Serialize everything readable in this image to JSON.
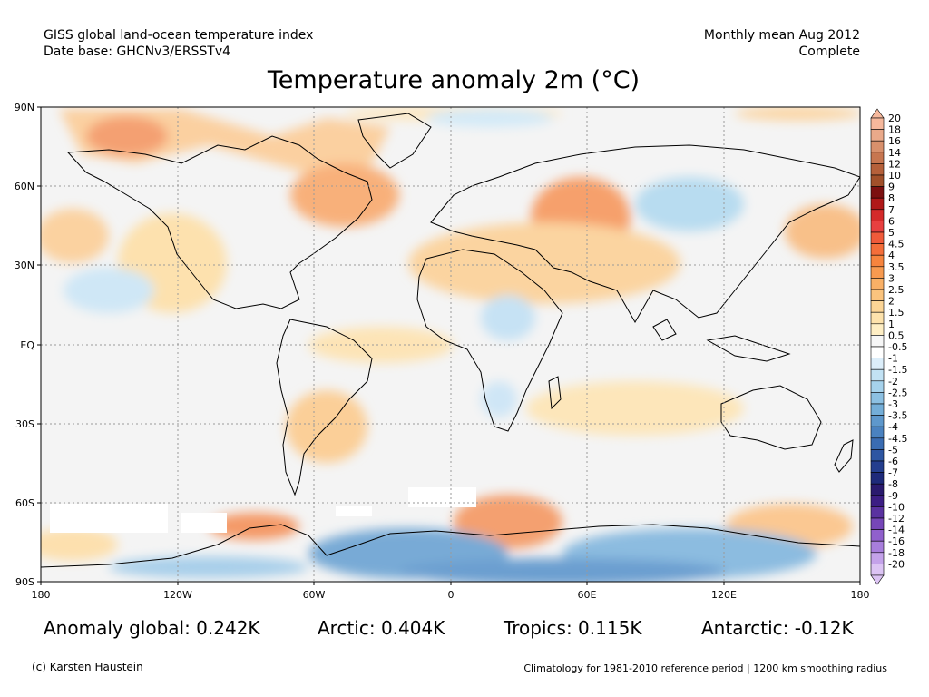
{
  "header": {
    "left_line1": "GISS global land-ocean temperature index",
    "left_line2": "Date base: GHCNv3/ERSSTv4",
    "right_line1": "Monthly mean Aug 2012",
    "right_line2": "Complete"
  },
  "title": "Temperature anomaly 2m (°C)",
  "axes": {
    "lat_labels": [
      "90N",
      "60N",
      "30N",
      "EQ",
      "30S",
      "60S",
      "90S"
    ],
    "lon_labels": [
      "180",
      "120W",
      "60W",
      "0",
      "60E",
      "120E",
      "180"
    ]
  },
  "stats": {
    "global": "Anomaly global: 0.242K",
    "arctic": "Arctic: 0.404K",
    "tropics": "Tropics: 0.115K",
    "antarctic": "Antarctic: -0.12K"
  },
  "footer": {
    "credit": "(c) Karsten Haustein",
    "note": "Climatology for 1981-2010 reference period | 1200 km smoothing radius"
  },
  "legend": {
    "labels": [
      "20",
      "18",
      "16",
      "14",
      "12",
      "10",
      "9",
      "8",
      "7",
      "6",
      "5",
      "4.5",
      "4",
      "3.5",
      "3",
      "2.5",
      "2",
      "1.5",
      "1",
      "0.5",
      "-0.5",
      "-1",
      "-1.5",
      "-2",
      "-2.5",
      "-3",
      "-3.5",
      "-4",
      "-4.5",
      "-5",
      "-6",
      "-7",
      "-8",
      "-9",
      "-10",
      "-12",
      "-14",
      "-16",
      "-18",
      "-20"
    ],
    "colors": [
      "#f6b89c",
      "#e9a98a",
      "#d8906c",
      "#c77650",
      "#b5603a",
      "#a1502a",
      "#7c1010",
      "#b01818",
      "#d42a2a",
      "#e84040",
      "#f05a3a",
      "#f46e3a",
      "#f6843e",
      "#f79a50",
      "#f9b066",
      "#fbc47e",
      "#fcd596",
      "#fde2ac",
      "#feeec4",
      "#f6f6f6",
      "#ffffff",
      "#dceefa",
      "#c2e2f4",
      "#a6d2ec",
      "#8cc0e2",
      "#74aed8",
      "#5e98cc",
      "#4a82c0",
      "#3a6cb2",
      "#2e56a2",
      "#243e8e",
      "#1e2a7a",
      "#2a1a6e",
      "#3c1e84",
      "#5a32a0",
      "#7646b8",
      "#9060cc",
      "#a87edc",
      "#c4a2ea",
      "#dcc4f4"
    ]
  }
}
